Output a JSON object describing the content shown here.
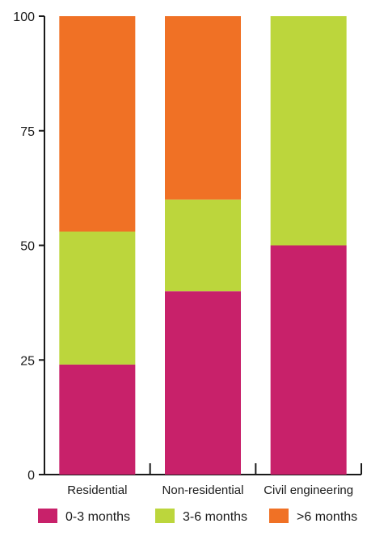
{
  "chart_data": {
    "type": "bar",
    "stacked": true,
    "categories": [
      "Residential",
      "Non-residential",
      "Civil engineering"
    ],
    "series": [
      {
        "name": "0-3 months",
        "color": "#c8216a",
        "values": [
          24,
          40,
          50
        ]
      },
      {
        "name": "3-6 months",
        "color": "#bcd63c",
        "values": [
          29,
          20,
          50
        ]
      },
      {
        "name": ">6 months",
        "color": "#f07125",
        "values": [
          47,
          40,
          0
        ]
      }
    ],
    "yticks": [
      0,
      25,
      50,
      75,
      100
    ],
    "ytick_labels": [
      "0",
      "25",
      "50",
      "75",
      "100"
    ],
    "ylim": [
      0,
      100
    ],
    "legend_position": "bottom",
    "grid": false,
    "title": "",
    "xlabel": "",
    "ylabel": ""
  }
}
